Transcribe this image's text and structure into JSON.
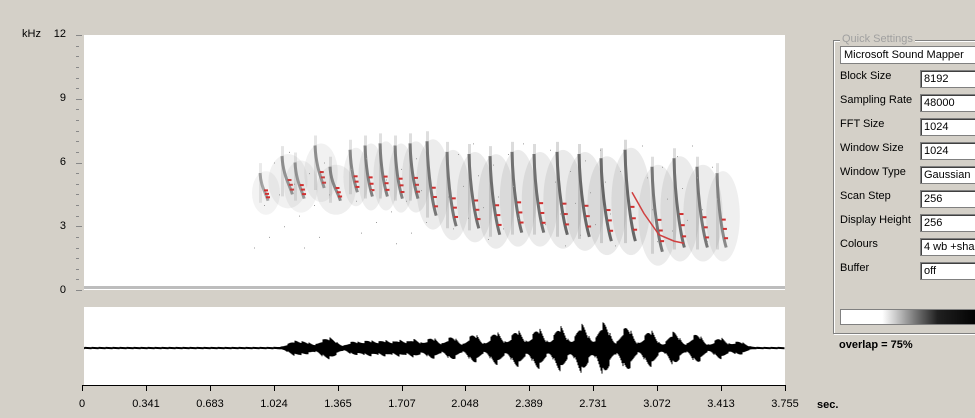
{
  "spectrogram": {
    "y_unit": "kHz",
    "y_ticks": [
      "12",
      "9",
      "6",
      "3",
      "0"
    ],
    "y_range_khz": [
      0,
      12
    ],
    "x_range_sec": [
      0,
      3.755
    ]
  },
  "time_axis": {
    "unit": "sec.",
    "ticks": [
      "0",
      "0.341",
      "0.683",
      "1.024",
      "1.365",
      "1.707",
      "2.048",
      "2.389",
      "2.731",
      "3.072",
      "3.413",
      "3.755"
    ]
  },
  "quick_settings": {
    "title": "Quick Settings",
    "device": "Microsoft Sound Mapper",
    "fields": [
      {
        "label": "Block Size",
        "value": "8192"
      },
      {
        "label": "Sampling Rate",
        "value": "48000"
      },
      {
        "label": "FFT Size",
        "value": "1024"
      },
      {
        "label": "Window Size",
        "value": "1024"
      },
      {
        "label": "Window Type",
        "value": "Gaussian"
      },
      {
        "label": "Scan Step",
        "value": "256"
      },
      {
        "label": "Display Height",
        "value": "256"
      },
      {
        "label": "Colours",
        "value": "4 wb +sha"
      },
      {
        "label": "Buffer",
        "value": "off"
      }
    ],
    "overlap": "overlap = 75%"
  }
}
